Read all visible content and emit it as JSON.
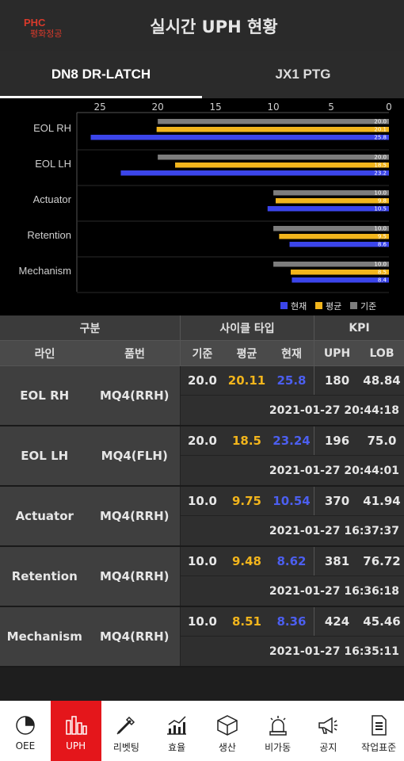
{
  "header": {
    "logo_top": "PHC",
    "logo_bottom": "평화정공",
    "title": "실시간 UPH 현황",
    "brand_color": "#d93a2b"
  },
  "tabs": [
    {
      "label": "DN8 DR-LATCH",
      "active": true
    },
    {
      "label": "JX1 PTG",
      "active": false
    }
  ],
  "chart_data": {
    "type": "bar",
    "orientation": "horizontal",
    "categories": [
      "EOL RH",
      "EOL LH",
      "Actuator",
      "Retention",
      "Mechanism"
    ],
    "series": [
      {
        "name": "기준",
        "color": "#7d7d7d",
        "values": [
          20.0,
          20.0,
          10.0,
          10.0,
          10.0
        ],
        "labels": [
          "20.0",
          "20.0",
          "10.0",
          "10.0",
          "10.0"
        ]
      },
      {
        "name": "평균",
        "color": "#f2b51c",
        "values": [
          20.1,
          18.5,
          9.8,
          9.5,
          8.5
        ],
        "labels": [
          "20.1",
          "18.5",
          "9.8",
          "9.5",
          "8.5"
        ]
      },
      {
        "name": "현재",
        "color": "#3b45ea",
        "values": [
          25.8,
          23.2,
          10.5,
          8.6,
          8.4
        ],
        "labels": [
          "25.8",
          "23.2",
          "10.5",
          "8.6",
          "8.4"
        ]
      }
    ],
    "xlim": [
      0,
      27
    ],
    "x_ticks": [
      25,
      20,
      15,
      10,
      5,
      0
    ],
    "reversed_axis": true,
    "legend_position": "bottom-right",
    "legend": [
      "현재",
      "평균",
      "기준"
    ]
  },
  "table": {
    "header1": {
      "group": "구분",
      "cycle": "사이클 타입",
      "kpi": "KPI"
    },
    "header2": {
      "line": "라인",
      "part": "품번",
      "base": "기준",
      "avg": "평균",
      "cur": "현재",
      "uph": "UPH",
      "lob": "LOB"
    },
    "rows": [
      {
        "line": "EOL RH",
        "part": "MQ4(RRH)",
        "base": "20.0",
        "avg": "20.11",
        "cur": "25.8",
        "uph": "180",
        "lob": "48.84",
        "time": "2021-01-27 20:44:18"
      },
      {
        "line": "EOL LH",
        "part": "MQ4(FLH)",
        "base": "20.0",
        "avg": "18.5",
        "cur": "23.24",
        "uph": "196",
        "lob": "75.0",
        "time": "2021-01-27 20:44:01"
      },
      {
        "line": "Actuator",
        "part": "MQ4(RRH)",
        "base": "10.0",
        "avg": "9.75",
        "cur": "10.54",
        "uph": "370",
        "lob": "41.94",
        "time": "2021-01-27 16:37:37"
      },
      {
        "line": "Retention",
        "part": "MQ4(RRH)",
        "base": "10.0",
        "avg": "9.48",
        "cur": "8.62",
        "uph": "381",
        "lob": "76.72",
        "time": "2021-01-27 16:36:18"
      },
      {
        "line": "Mechanism",
        "part": "MQ4(RRH)",
        "base": "10.0",
        "avg": "8.51",
        "cur": "8.36",
        "uph": "424",
        "lob": "45.46",
        "time": "2021-01-27 16:35:11"
      }
    ]
  },
  "nav": [
    {
      "label": "OEE",
      "icon": "pie-chart-icon",
      "active": false
    },
    {
      "label": "UPH",
      "icon": "bar-chart-icon",
      "active": true
    },
    {
      "label": "리벳팅",
      "icon": "rivet-tool-icon",
      "active": false
    },
    {
      "label": "효율",
      "icon": "line-chart-icon",
      "active": false
    },
    {
      "label": "생산",
      "icon": "box-icon",
      "active": false
    },
    {
      "label": "비가동",
      "icon": "siren-icon",
      "active": false
    },
    {
      "label": "공지",
      "icon": "megaphone-icon",
      "active": false
    },
    {
      "label": "작업표준",
      "icon": "document-icon",
      "active": false
    }
  ],
  "colors": {
    "accent_red": "#e4161b",
    "current_blue": "#4c5ff0",
    "avg_yellow": "#f2b51c"
  }
}
